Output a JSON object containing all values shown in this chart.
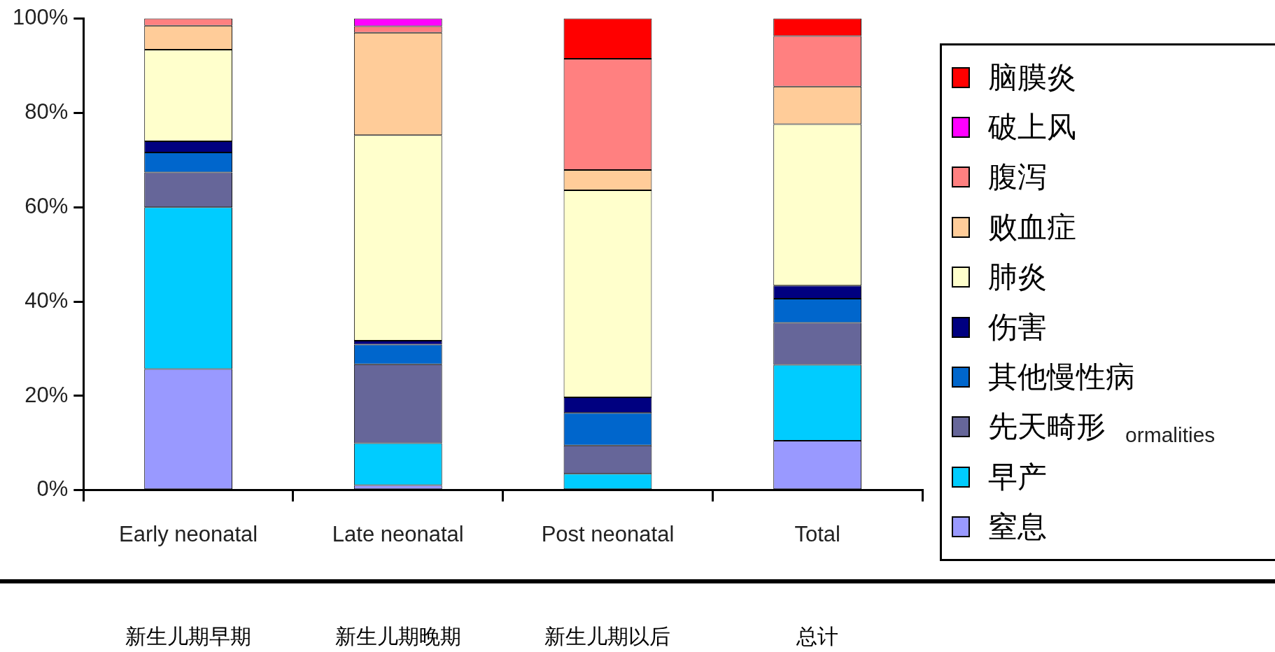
{
  "chart_data": {
    "type": "bar",
    "stacked": true,
    "categories": [
      "Early neonatal",
      "Late neonatal",
      "Post neonatal",
      "Total"
    ],
    "series": [
      {
        "name": "窒息",
        "color": "#9999ff",
        "values": [
          25.7,
          1.1,
          0,
          10.5
        ]
      },
      {
        "name": "早产",
        "color": "#00ccff",
        "values": [
          34.3,
          8.9,
          3.5,
          16.1
        ]
      },
      {
        "name": "先天畸形",
        "color": "#666699",
        "values": [
          7.4,
          16.7,
          6.0,
          8.9
        ]
      },
      {
        "name": "其他慢性病",
        "color": "#0066cc",
        "values": [
          4.2,
          4.2,
          6.9,
          5.1
        ]
      },
      {
        "name": "伤害",
        "color": "#000080",
        "values": [
          2.4,
          0.8,
          3.3,
          2.8
        ]
      },
      {
        "name": "肺炎",
        "color": "#ffffcc",
        "values": [
          19.4,
          43.6,
          43.9,
          34.2
        ]
      },
      {
        "name": "败血症",
        "color": "#ffcc99",
        "values": [
          5.1,
          21.7,
          4.3,
          8.0
        ]
      },
      {
        "name": "腹泻",
        "color": "#ff8080",
        "values": [
          1.5,
          1.4,
          23.6,
          10.7
        ]
      },
      {
        "name": "破上风",
        "color": "#ff00ff",
        "values": [
          0,
          1.6,
          0,
          0
        ]
      },
      {
        "name": "脑膜炎",
        "color": "#ff0000",
        "values": [
          0,
          0,
          8.5,
          3.7
        ]
      }
    ],
    "ylim": [
      0,
      100
    ],
    "yticks": [
      {
        "value": 0,
        "label": "0%"
      },
      {
        "value": 20,
        "label": "20%"
      },
      {
        "value": 40,
        "label": "40%"
      },
      {
        "value": 60,
        "label": "60%"
      },
      {
        "value": 80,
        "label": "80%"
      },
      {
        "value": 100,
        "label": "100%"
      }
    ],
    "legend": "right",
    "annotations": [
      "新生儿期早期",
      "新生儿期晚期",
      "新生儿期以后",
      "总计",
      "ormalities"
    ]
  }
}
